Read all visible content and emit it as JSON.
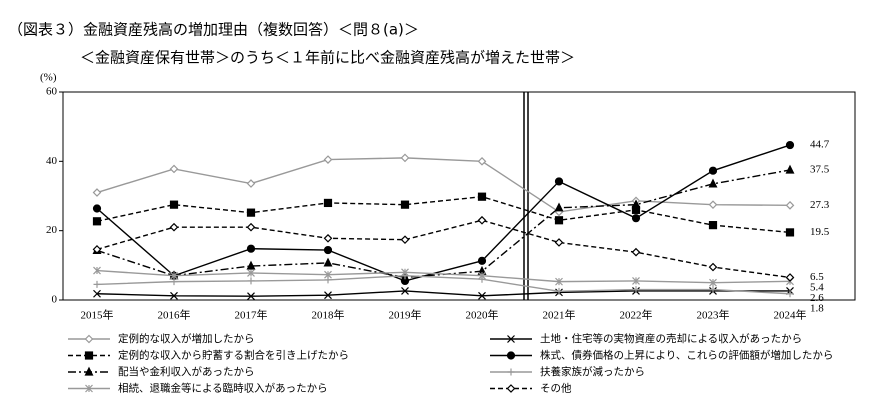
{
  "chart_data": {
    "type": "line",
    "title": "（図表３）金融資産残高の増加理由（複数回答）＜問８(a)＞",
    "subtitle": "＜金融資産保有世帯＞のうち＜１年前に比べ金融資産残高が増えた世帯＞",
    "y_label": "(%)",
    "categories": [
      "2015年",
      "2016年",
      "2017年",
      "2018年",
      "2019年",
      "2020年",
      "2021年",
      "2022年",
      "2023年",
      "2024年"
    ],
    "ylim": [
      0,
      60
    ],
    "yticks": [
      0,
      20,
      40,
      60
    ],
    "series": [
      {
        "name": "定例的な収入が増加したから",
        "color": "#999999",
        "marker": "diamond-open",
        "dash": "solid",
        "values": [
          31,
          37.8,
          33.6,
          40.5,
          41,
          40,
          25.4,
          28.6,
          27.5,
          27.3
        ]
      },
      {
        "name": "土地・住宅等の実物資産の売却による収入があったから",
        "color": "#000000",
        "marker": "x",
        "dash": "solid",
        "values": [
          1.8,
          1.2,
          1.1,
          1.4,
          2.6,
          1.2,
          2.2,
          2.6,
          2.6,
          2.6
        ]
      },
      {
        "name": "定例的な収入から貯蓄する割合を引き上げたから",
        "color": "#000000",
        "marker": "square",
        "dash": "dashed",
        "values": [
          22.7,
          27.5,
          25.2,
          28,
          27.5,
          29.8,
          23,
          26,
          21.6,
          19.5
        ]
      },
      {
        "name": "株式、債券価格の上昇により、これらの評価額が増加したから",
        "color": "#000000",
        "marker": "circle",
        "dash": "solid",
        "values": [
          26.4,
          7,
          14.8,
          14.4,
          5.5,
          11.3,
          34.2,
          23.6,
          37.3,
          44.7
        ]
      },
      {
        "name": "配当や金利収入があったから",
        "color": "#000000",
        "marker": "triangle",
        "dash": "dashdot",
        "values": [
          14.3,
          7,
          9.8,
          10.7,
          6.5,
          8.3,
          26.6,
          27.5,
          33.5,
          37.5
        ]
      },
      {
        "name": "扶養家族が減ったから",
        "color": "#999999",
        "marker": "plus",
        "dash": "solid",
        "values": [
          4.5,
          5.3,
          5.5,
          5.8,
          7,
          6,
          2.5,
          3,
          3,
          1.8
        ]
      },
      {
        "name": "相続、退職金等による臨時収入があったから",
        "color": "#999999",
        "marker": "asterisk",
        "dash": "solid",
        "values": [
          8.5,
          7,
          7.8,
          7.3,
          8,
          7,
          5.3,
          5.5,
          5,
          5.4
        ]
      },
      {
        "name": "その他",
        "color": "#000000",
        "marker": "diamond-open",
        "dash": "dashed",
        "values": [
          14.6,
          21,
          21,
          17.8,
          17.4,
          23,
          16.6,
          13.8,
          9.5,
          6.5
        ]
      }
    ]
  }
}
